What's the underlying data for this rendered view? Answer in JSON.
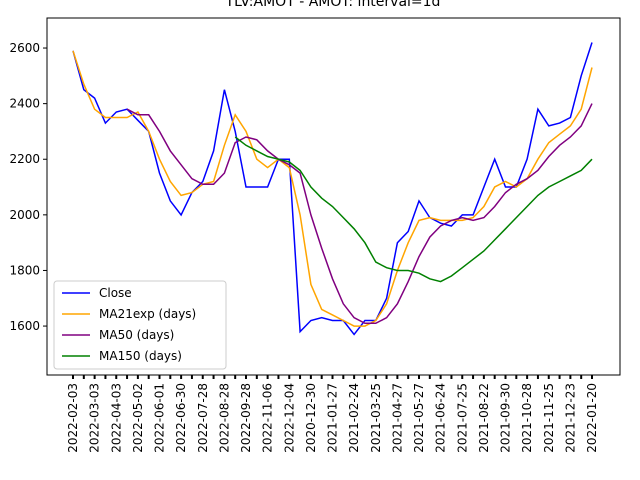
{
  "chart_data": {
    "type": "line",
    "title": "TLV:AMOT - AMOT: interval=1d",
    "categories": [
      "2022-02-03",
      null,
      "2022-03-03",
      null,
      "2022-04-03",
      null,
      "2022-05-02",
      null,
      "2022-06-01",
      null,
      "2022-06-30",
      null,
      "2022-07-28",
      null,
      "2022-08-28",
      null,
      "2022-09-28",
      null,
      "2022-11-06",
      null,
      "2022-12-04",
      null,
      "2020-12-30",
      null,
      "2021-01-27",
      null,
      "2021-02-24",
      null,
      "2021-03-25",
      null,
      "2021-04-27",
      null,
      "2021-05-27",
      null,
      "2021-06-24",
      null,
      "2021-07-25",
      null,
      "2021-08-22",
      null,
      "2021-09-30",
      null,
      "2021-10-28",
      null,
      "2021-11-25",
      null,
      "2021-12-23",
      null,
      "2022-01-20"
    ],
    "series": [
      {
        "name": "Close",
        "color": "#0000ff",
        "values": [
          2590,
          2450,
          2420,
          2330,
          2370,
          2380,
          2340,
          2300,
          2150,
          2050,
          2000,
          2080,
          2120,
          2230,
          2450,
          2300,
          2100,
          2100,
          2100,
          2200,
          2200,
          1580,
          1620,
          1630,
          1620,
          1620,
          1570,
          1620,
          1620,
          1700,
          1900,
          1940,
          2050,
          1990,
          1970,
          1960,
          2000,
          2000,
          2100,
          2200,
          2100,
          2100,
          2200,
          2380,
          2320,
          2330,
          2350,
          2500,
          2620
        ]
      },
      {
        "name": "MA21exp (days)",
        "color": "#ffa500",
        "values": [
          2590,
          2470,
          2380,
          2350,
          2350,
          2350,
          2370,
          2300,
          2200,
          2120,
          2070,
          2080,
          2110,
          2120,
          2250,
          2360,
          2300,
          2200,
          2170,
          2200,
          2170,
          2000,
          1750,
          1660,
          1640,
          1620,
          1600,
          1600,
          1620,
          1680,
          1800,
          1900,
          1980,
          1990,
          1980,
          1980,
          1980,
          1990,
          2030,
          2100,
          2120,
          2100,
          2130,
          2200,
          2260,
          2290,
          2320,
          2380,
          2530
        ]
      },
      {
        "name": "MA50 (days)",
        "color": "#800080",
        "values": [
          null,
          null,
          null,
          null,
          null,
          2380,
          2360,
          2360,
          2300,
          2230,
          2180,
          2130,
          2110,
          2110,
          2150,
          2260,
          2280,
          2270,
          2230,
          2200,
          2180,
          2150,
          2000,
          1880,
          1770,
          1680,
          1630,
          1610,
          1610,
          1630,
          1680,
          1760,
          1850,
          1920,
          1960,
          1980,
          1990,
          1980,
          1990,
          2030,
          2080,
          2110,
          2130,
          2160,
          2210,
          2250,
          2280,
          2320,
          2400
        ]
      },
      {
        "name": "MA150 (days)",
        "color": "#008000",
        "values": [
          null,
          null,
          null,
          null,
          null,
          null,
          null,
          null,
          null,
          null,
          null,
          null,
          null,
          null,
          null,
          2280,
          2250,
          2230,
          2210,
          2200,
          2190,
          2160,
          2100,
          2060,
          2030,
          1990,
          1950,
          1900,
          1830,
          1810,
          1800,
          1800,
          1790,
          1770,
          1760,
          1780,
          1810,
          1840,
          1870,
          1910,
          1950,
          1990,
          2030,
          2070,
          2100,
          2120,
          2140,
          2160,
          2200
        ]
      }
    ],
    "ylim": [
      1424,
      2708
    ],
    "yticks": [
      1600,
      1800,
      2000,
      2200,
      2400,
      2600
    ],
    "legend": "lower left"
  }
}
